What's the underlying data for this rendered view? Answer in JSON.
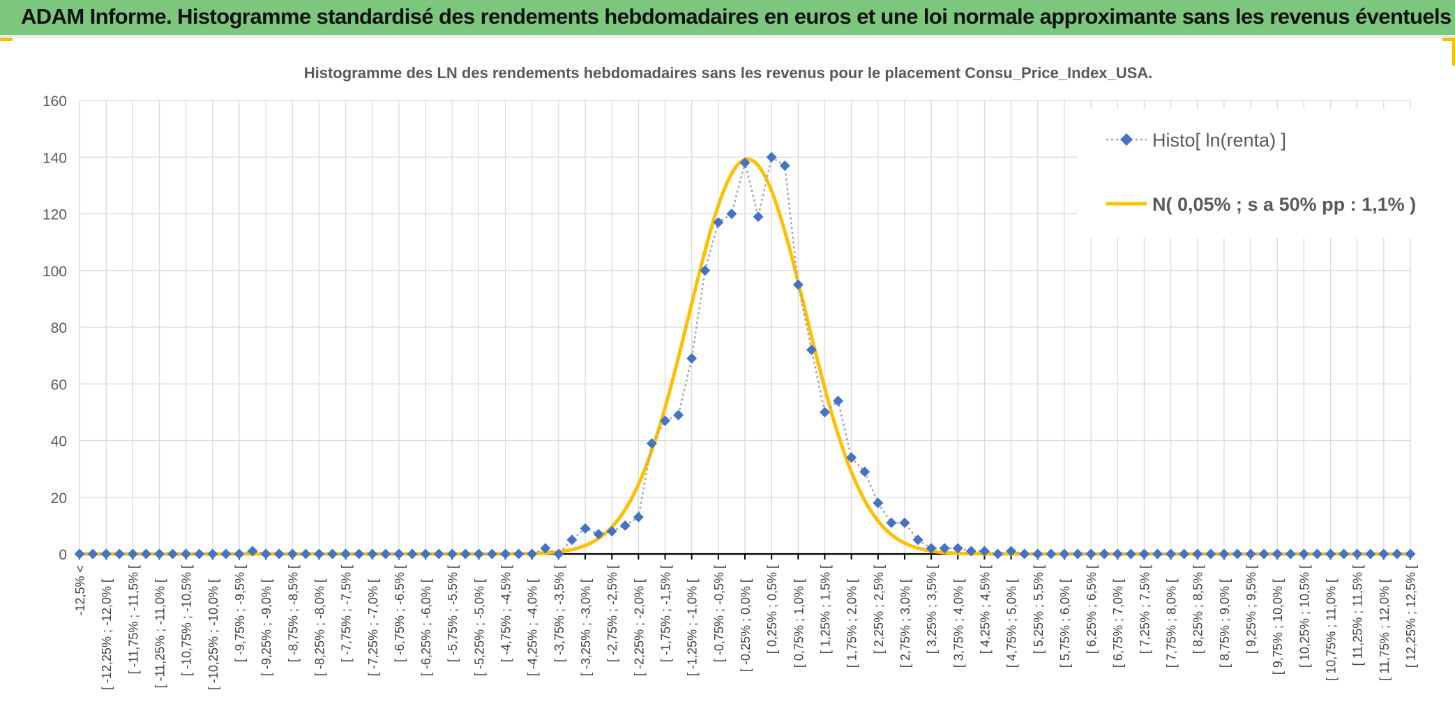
{
  "banner": {
    "title": "ADAM Informe. Histogramme standardisé des rendements hebdomadaires en euros et une loi normale approximante sans les revenus éventuels"
  },
  "colors": {
    "banner_bg": "#7cc67e",
    "histo": "#4472c4",
    "normal": "#ffc000",
    "grid": "#d9d9d9"
  },
  "chart_data": {
    "type": "line",
    "title": "Histogramme des LN des rendements hebdomadaires sans les revenus pour le placement Consu_Price_Index_USA.",
    "xlabel": "",
    "ylabel": "",
    "ylim": [
      0,
      160
    ],
    "yticks": [
      0,
      20,
      40,
      60,
      80,
      100,
      120,
      140,
      160
    ],
    "grid": true,
    "legend_position": "top-right",
    "categories": [
      "-12,5% <",
      "[ -12,25% ; -12,0% [",
      "[ -11,75% ; -11,5% [",
      "[ -11,25% ; -11,0% [",
      "[ -10,75% ; -10,5% [",
      "[ -10,25% ; -10,0% [",
      "[ -9,75% ; -9,5% [",
      "[ -9,25% ; -9,0% [",
      "[ -8,75% ; -8,5% [",
      "[ -8,25% ; -8,0% [",
      "[ -7,75% ; -7,5% [",
      "[ -7,25% ; -7,0% [",
      "[ -6,75% ; -6,5% [",
      "[ -6,25% ; -6,0% [",
      "[ -5,75% ; -5,5% [",
      "[ -5,25% ; -5,0% [",
      "[ -4,75% ; -4,5% [",
      "[ -4,25% ; -4,0% [",
      "[ -3,75% ; -3,5% [",
      "[ -3,25% ; -3,0% [",
      "[ -2,75% ; -2,5% [",
      "[ -2,25% ; -2,0% [",
      "[ -1,75% ; -1,5% [",
      "[ -1,25% ; -1,0% [",
      "[ -0,75% ; -0,5% [",
      "[ -0,25% ; 0,0% [",
      "[ 0,25% ; 0,5% [",
      "[ 0,75% ; 1,0% [",
      "[ 1,25% ; 1,5% [",
      "[ 1,75% ; 2,0% [",
      "[ 2,25% ; 2,5% [",
      "[ 2,75% ; 3,0% [",
      "[ 3,25% ; 3,5% [",
      "[ 3,75% ; 4,0% [",
      "[ 4,25% ; 4,5% [",
      "[ 4,75% ; 5,0% [",
      "[ 5,25% ; 5,5% [",
      "[ 5,75% ; 6,0% [",
      "[ 6,25% ; 6,5% [",
      "[ 6,75% ; 7,0% [",
      "[ 7,25% ; 7,5% [",
      "[ 7,75% ; 8,0% [",
      "[ 8,25% ; 8,5% [",
      "[ 8,75% ; 9,0% [",
      "[ 9,25% ; 9,5% [",
      "[ 9,75% ; 10,0% [",
      "[ 10,25% ; 10,5% [",
      "[ 10,75% ; 11,0% [",
      "[ 11,25% ; 11,5% [",
      "[ 11,75% ; 12,0% [",
      "[ 12,25% ; 12,5% ["
    ],
    "x": [
      -12.5,
      -12.25,
      -12.0,
      -11.75,
      -11.5,
      -11.25,
      -11.0,
      -10.75,
      -10.5,
      -10.25,
      -10.0,
      -9.75,
      -9.5,
      -9.25,
      -9.0,
      -8.75,
      -8.5,
      -8.25,
      -8.0,
      -7.75,
      -7.5,
      -7.25,
      -7.0,
      -6.75,
      -6.5,
      -6.25,
      -6.0,
      -5.75,
      -5.5,
      -5.25,
      -5.0,
      -4.75,
      -4.5,
      -4.25,
      -4.0,
      -3.75,
      -3.5,
      -3.25,
      -3.0,
      -2.75,
      -2.5,
      -2.25,
      -2.0,
      -1.75,
      -1.5,
      -1.25,
      -1.0,
      -0.75,
      -0.5,
      -0.25,
      0.0,
      0.25,
      0.5,
      0.75,
      1.0,
      1.25,
      1.5,
      1.75,
      2.0,
      2.25,
      2.5,
      2.75,
      3.0,
      3.25,
      3.5,
      3.75,
      4.0,
      4.25,
      4.5,
      4.75,
      5.0,
      5.25,
      5.5,
      5.75,
      6.0,
      6.25,
      6.5,
      6.75,
      7.0,
      7.25,
      7.5,
      7.75,
      8.0,
      8.25,
      8.5,
      8.75,
      9.0,
      9.25,
      9.5,
      9.75,
      10.0,
      10.25,
      10.5,
      10.75,
      11.0,
      11.25,
      11.5,
      11.75,
      12.0,
      12.25,
      12.5
    ],
    "series": [
      {
        "name": "Histo[ ln(renta) ]",
        "values": [
          0,
          0,
          0,
          0,
          0,
          0,
          0,
          0,
          0,
          0,
          0,
          0,
          0,
          1,
          0,
          0,
          0,
          0,
          0,
          0,
          0,
          0,
          0,
          0,
          0,
          0,
          0,
          0,
          0,
          0,
          0,
          0,
          0,
          0,
          0,
          2,
          0,
          5,
          9,
          7,
          8,
          10,
          13,
          39,
          47,
          49,
          69,
          100,
          117,
          120,
          138,
          119,
          140,
          137,
          95,
          72,
          50,
          54,
          34,
          29,
          18,
          11,
          11,
          5,
          2,
          2,
          2,
          1,
          1,
          0,
          1,
          0,
          0,
          0,
          0,
          0,
          0,
          0,
          0,
          0,
          0,
          0,
          0,
          0,
          0,
          0,
          0,
          0,
          0,
          0,
          0,
          0,
          0,
          0,
          0,
          0,
          0,
          0,
          0,
          0,
          0
        ]
      },
      {
        "name": "N( 0,05% ; s a 50% pp : 1,1% )",
        "mean": 0.05,
        "sd": 1.1,
        "peak": 139.3
      }
    ]
  }
}
